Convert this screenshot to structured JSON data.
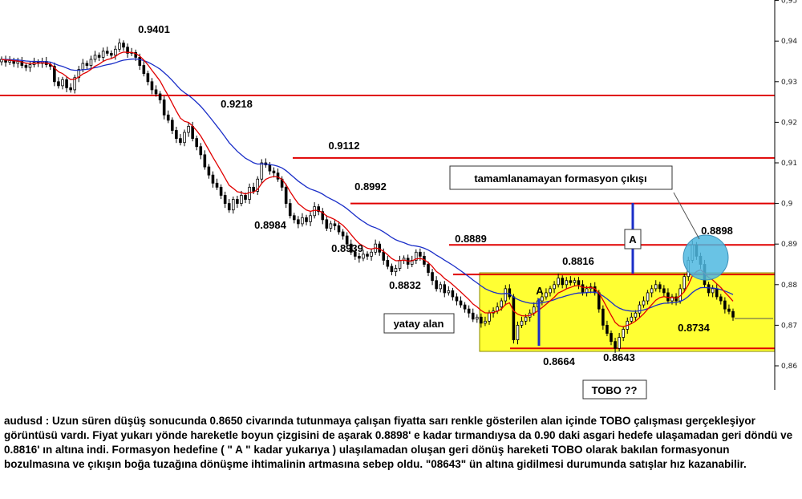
{
  "chart_data": {
    "type": "candlestick",
    "symbol": "audusd",
    "ylim": [
      0.855,
      0.95
    ],
    "y_ticks": [
      "0,86",
      "0,87",
      "0,88",
      "0,89",
      "0,9",
      "0,91",
      "0,92",
      "0,93",
      "0,94",
      "0,95"
    ],
    "y_tick_values": [
      0.86,
      0.87,
      0.88,
      0.89,
      0.9,
      0.91,
      0.92,
      0.93,
      0.94,
      0.95
    ],
    "closes": [
      0.9355,
      0.9348,
      0.9352,
      0.9345,
      0.935,
      0.934,
      0.9335,
      0.9342,
      0.9348,
      0.9345,
      0.935,
      0.9342,
      0.9338,
      0.93,
      0.929,
      0.9305,
      0.9285,
      0.928,
      0.931,
      0.933,
      0.9345,
      0.934,
      0.9355,
      0.9365,
      0.936,
      0.9375,
      0.937,
      0.9365,
      0.938,
      0.9395,
      0.9385,
      0.937,
      0.9372,
      0.936,
      0.934,
      0.932,
      0.93,
      0.928,
      0.927,
      0.9255,
      0.9218,
      0.9205,
      0.918,
      0.916,
      0.915,
      0.9175,
      0.919,
      0.916,
      0.914,
      0.912,
      0.909,
      0.907,
      0.905,
      0.904,
      0.902,
      0.9,
      0.8984,
      0.901,
      0.9,
      0.902,
      0.901,
      0.904,
      0.903,
      0.906,
      0.91,
      0.9095,
      0.908,
      0.9075,
      0.906,
      0.904,
      0.9,
      0.897,
      0.896,
      0.895,
      0.8965,
      0.8955,
      0.897,
      0.8992,
      0.898,
      0.896,
      0.8939,
      0.895,
      0.8945,
      0.893,
      0.892,
      0.89,
      0.888,
      0.887,
      0.8865,
      0.8875,
      0.887,
      0.888,
      0.89,
      0.888,
      0.886,
      0.8845,
      0.8832,
      0.884,
      0.886,
      0.8865,
      0.885,
      0.886,
      0.888,
      0.887,
      0.885,
      0.883,
      0.881,
      0.879,
      0.88,
      0.878,
      0.8785,
      0.877,
      0.876,
      0.875,
      0.874,
      0.873,
      0.8715,
      0.872,
      0.8705,
      0.871,
      0.873,
      0.8735,
      0.8745,
      0.876,
      0.879,
      0.877,
      0.8664,
      0.87,
      0.871,
      0.872,
      0.873,
      0.8745,
      0.876,
      0.877,
      0.878,
      0.879,
      0.88,
      0.8816,
      0.88,
      0.881,
      0.8805,
      0.881,
      0.88,
      0.878,
      0.879,
      0.8795,
      0.878,
      0.874,
      0.87,
      0.868,
      0.866,
      0.8643,
      0.867,
      0.869,
      0.871,
      0.872,
      0.873,
      0.875,
      0.876,
      0.878,
      0.879,
      0.88,
      0.879,
      0.878,
      0.876,
      0.877,
      0.876,
      0.879,
      0.882,
      0.886,
      0.8898,
      0.887,
      0.885,
      0.88,
      0.878,
      0.879,
      0.877,
      0.876,
      0.874,
      0.8734,
      0.872
    ],
    "series": [
      {
        "color": "#e00000",
        "ma_period": 8
      },
      {
        "color": "#1a2ec8",
        "ma_period": 25
      }
    ],
    "horizontal_lines": [
      {
        "value": 0.9266,
        "color": "#e00000"
      },
      {
        "value": 0.9112,
        "color": "#e00000"
      },
      {
        "value": 0.9,
        "color": "#e00000"
      },
      {
        "value": 0.8898,
        "color": "#e00000"
      },
      {
        "value": 0.8825,
        "color": "#e00000"
      },
      {
        "value": 0.8643,
        "color": "#e00000"
      }
    ],
    "price_labels": [
      "0.9401",
      "0.9218",
      "0.9112",
      "0.8984",
      "0.8992",
      "0.8939",
      "0.8889",
      "0.8832",
      "0.8816",
      "0.8898",
      "0.8664",
      "0.8643",
      "0.8734"
    ],
    "annotations": {
      "formation_exit": "tamamlanamayan formasyon çıkışı",
      "range_zone": "yatay alan",
      "pattern": "TOBO ??",
      "measure_label": "A"
    },
    "colors": {
      "zone_fill": "#ffff33",
      "zone_border": "#888800",
      "resistance": "#e00000",
      "ma_fast": "#e00000",
      "ma_slow": "#1a2ec8",
      "measure": "#1a2ec8",
      "circle": "#4fb8e0"
    }
  },
  "caption": "audusd : Uzun süren düşüş sonucunda 0.8650 civarında tutunmaya çalışan fiyatta sarı renkle gösterilen alan içinde TOBO çalışması gerçekleşiyor görüntüsü vardı. Fiyat yukarı yönde hareketle boyun çizgisini de aşarak 0.8898' e kadar tırmandıysa da 0.90 daki asgari hedefe ulaşamadan geri döndü ve 0.8816' ın altına indi. Formasyon hedefine ( \" A \" kadar yukarıya ) ulaşılamadan oluşan geri dönüş hareketi TOBO olarak bakılan formasyonun bozulmasına ve çıkışın boğa tuzağına dönüşme ihtimalinin artmasına sebep oldu. \"08643\" ün altına gidilmesi durumunda satışlar hız kazanabilir."
}
